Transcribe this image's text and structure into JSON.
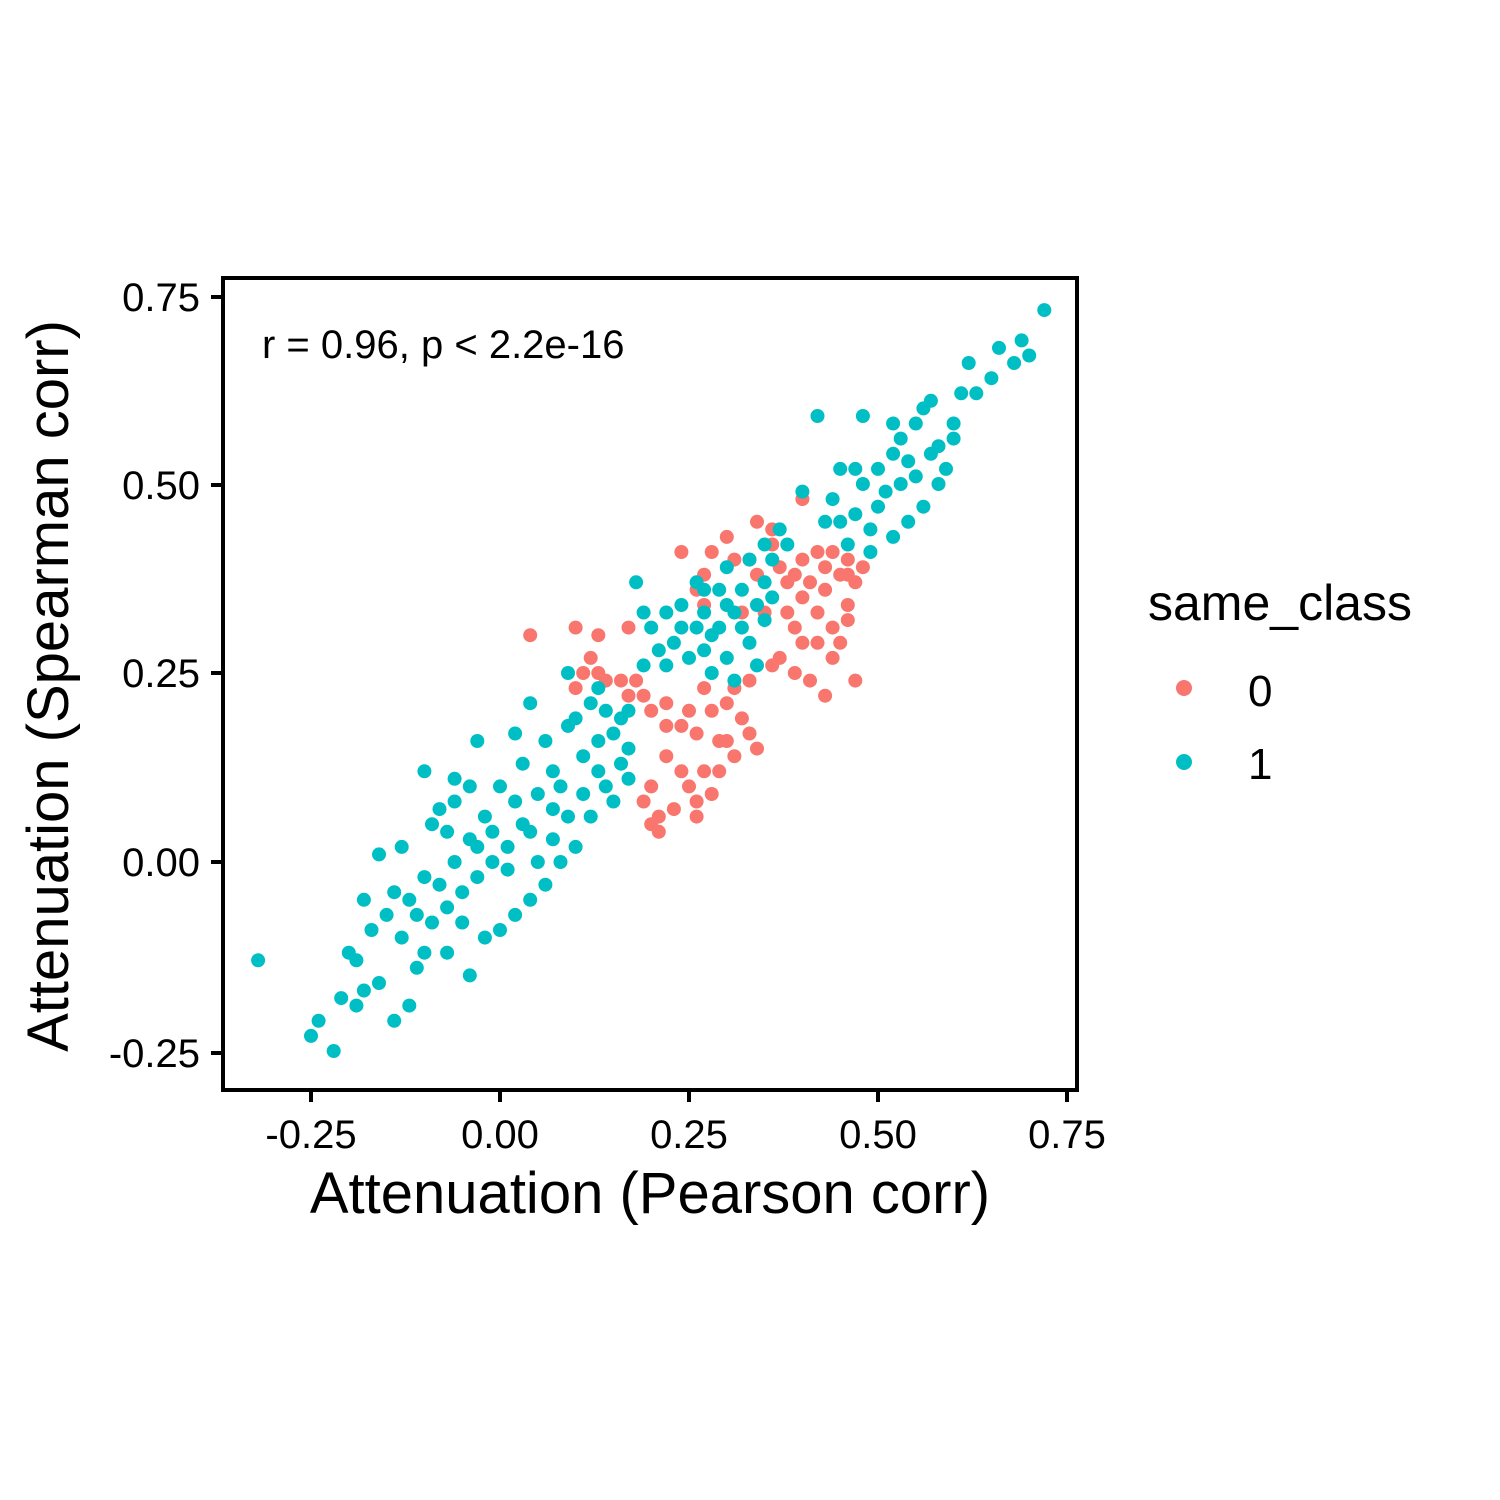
{
  "chart_data": {
    "type": "scatter",
    "xlabel": "Attenuation (Pearson corr)",
    "ylabel": "Attenuation (Spearman corr)",
    "xlim": [
      -0.3,
      0.75
    ],
    "ylim": [
      -0.26,
      0.75
    ],
    "x_ticks": [
      "-0.25",
      "0.00",
      "0.25",
      "0.50",
      "0.75"
    ],
    "y_ticks": [
      "-0.25",
      "0.00",
      "0.25",
      "0.50",
      "0.75"
    ],
    "annotation": "r = 0.96, p < 2.2e-16",
    "grid": false,
    "legend": {
      "title": "same_class",
      "placement": "right",
      "entries": [
        {
          "label": "0",
          "color": "#F8766D"
        },
        {
          "label": "1",
          "color": "#00BFC4"
        }
      ]
    },
    "series": [
      {
        "name": "0",
        "color": "#F8766D",
        "points": [
          [
            0.04,
            0.3
          ],
          [
            0.1,
            0.31
          ],
          [
            0.13,
            0.3
          ],
          [
            0.17,
            0.31
          ],
          [
            0.12,
            0.27
          ],
          [
            0.11,
            0.25
          ],
          [
            0.13,
            0.25
          ],
          [
            0.1,
            0.23
          ],
          [
            0.14,
            0.24
          ],
          [
            0.16,
            0.24
          ],
          [
            0.17,
            0.22
          ],
          [
            0.18,
            0.24
          ],
          [
            0.24,
            0.41
          ],
          [
            0.28,
            0.41
          ],
          [
            0.3,
            0.43
          ],
          [
            0.31,
            0.4
          ],
          [
            0.27,
            0.38
          ],
          [
            0.34,
            0.45
          ],
          [
            0.36,
            0.44
          ],
          [
            0.36,
            0.42
          ],
          [
            0.4,
            0.48
          ],
          [
            0.33,
            0.4
          ],
          [
            0.34,
            0.38
          ],
          [
            0.26,
            0.36
          ],
          [
            0.27,
            0.34
          ],
          [
            0.32,
            0.33
          ],
          [
            0.19,
            0.22
          ],
          [
            0.2,
            0.2
          ],
          [
            0.22,
            0.21
          ],
          [
            0.24,
            0.18
          ],
          [
            0.26,
            0.17
          ],
          [
            0.28,
            0.2
          ],
          [
            0.3,
            0.16
          ],
          [
            0.31,
            0.14
          ],
          [
            0.29,
            0.12
          ],
          [
            0.25,
            0.1
          ],
          [
            0.28,
            0.09
          ],
          [
            0.26,
            0.08
          ],
          [
            0.23,
            0.07
          ],
          [
            0.21,
            0.06
          ],
          [
            0.2,
            0.1
          ],
          [
            0.22,
            0.14
          ],
          [
            0.24,
            0.12
          ],
          [
            0.19,
            0.08
          ],
          [
            0.2,
            0.05
          ],
          [
            0.21,
            0.04
          ],
          [
            0.26,
            0.06
          ],
          [
            0.27,
            0.12
          ],
          [
            0.29,
            0.16
          ],
          [
            0.32,
            0.19
          ],
          [
            0.33,
            0.17
          ],
          [
            0.34,
            0.15
          ],
          [
            0.38,
            0.37
          ],
          [
            0.4,
            0.35
          ],
          [
            0.42,
            0.33
          ],
          [
            0.44,
            0.31
          ],
          [
            0.45,
            0.29
          ],
          [
            0.46,
            0.34
          ],
          [
            0.47,
            0.37
          ],
          [
            0.48,
            0.39
          ],
          [
            0.46,
            0.38
          ],
          [
            0.43,
            0.36
          ],
          [
            0.39,
            0.31
          ],
          [
            0.4,
            0.29
          ],
          [
            0.37,
            0.27
          ],
          [
            0.39,
            0.25
          ],
          [
            0.41,
            0.24
          ],
          [
            0.43,
            0.22
          ],
          [
            0.42,
            0.29
          ],
          [
            0.44,
            0.27
          ],
          [
            0.47,
            0.24
          ],
          [
            0.46,
            0.32
          ],
          [
            0.4,
            0.4
          ],
          [
            0.42,
            0.41
          ],
          [
            0.45,
            0.38
          ],
          [
            0.38,
            0.33
          ],
          [
            0.41,
            0.37
          ],
          [
            0.43,
            0.39
          ],
          [
            0.36,
            0.26
          ],
          [
            0.35,
            0.33
          ],
          [
            0.46,
            0.4
          ],
          [
            0.44,
            0.41
          ],
          [
            0.37,
            0.39
          ],
          [
            0.39,
            0.38
          ],
          [
            0.31,
            0.23
          ],
          [
            0.3,
            0.21
          ],
          [
            0.33,
            0.24
          ],
          [
            0.22,
            0.18
          ],
          [
            0.25,
            0.2
          ],
          [
            0.27,
            0.23
          ]
        ]
      },
      {
        "name": "1",
        "color": "#00BFC4",
        "points": [
          [
            -0.32,
            -0.13
          ],
          [
            -0.25,
            -0.23
          ],
          [
            -0.22,
            -0.25
          ],
          [
            -0.24,
            -0.21
          ],
          [
            -0.21,
            -0.18
          ],
          [
            -0.2,
            -0.12
          ],
          [
            -0.18,
            -0.17
          ],
          [
            -0.19,
            -0.19
          ],
          [
            -0.16,
            -0.16
          ],
          [
            -0.14,
            -0.21
          ],
          [
            -0.12,
            -0.19
          ],
          [
            -0.11,
            -0.14
          ],
          [
            -0.1,
            -0.12
          ],
          [
            -0.07,
            -0.12
          ],
          [
            -0.04,
            -0.15
          ],
          [
            -0.15,
            -0.07
          ],
          [
            -0.16,
            0.01
          ],
          [
            -0.12,
            -0.05
          ],
          [
            -0.09,
            0.05
          ],
          [
            -0.1,
            0.12
          ],
          [
            -0.06,
            0.11
          ],
          [
            -0.04,
            0.1
          ],
          [
            -0.03,
            0.16
          ],
          [
            -0.08,
            0.07
          ],
          [
            -0.13,
            0.02
          ],
          [
            -0.06,
            0.08
          ],
          [
            0.02,
            0.17
          ],
          [
            0.04,
            0.21
          ],
          [
            0.09,
            0.25
          ],
          [
            0.13,
            0.23
          ],
          [
            0.18,
            0.37
          ],
          [
            0.19,
            0.33
          ],
          [
            0.24,
            0.34
          ],
          [
            0.27,
            0.33
          ],
          [
            0.29,
            0.36
          ],
          [
            0.3,
            0.39
          ],
          [
            0.33,
            0.4
          ],
          [
            0.35,
            0.42
          ],
          [
            0.37,
            0.44
          ],
          [
            0.4,
            0.49
          ],
          [
            0.43,
            0.45
          ],
          [
            0.45,
            0.52
          ],
          [
            0.47,
            0.52
          ],
          [
            0.48,
            0.59
          ],
          [
            0.52,
            0.58
          ],
          [
            0.55,
            0.58
          ],
          [
            0.57,
            0.61
          ],
          [
            0.6,
            0.58
          ],
          [
            0.61,
            0.62
          ],
          [
            0.63,
            0.62
          ],
          [
            0.62,
            0.66
          ],
          [
            0.65,
            0.64
          ],
          [
            0.66,
            0.68
          ],
          [
            0.68,
            0.66
          ],
          [
            0.69,
            0.69
          ],
          [
            0.7,
            0.67
          ],
          [
            0.72,
            0.73
          ],
          [
            0.42,
            0.59
          ],
          [
            0.56,
            0.6
          ],
          [
            0.58,
            0.55
          ],
          [
            0.59,
            0.52
          ],
          [
            0.6,
            0.56
          ],
          [
            0.54,
            0.53
          ],
          [
            0.53,
            0.5
          ],
          [
            0.5,
            0.47
          ],
          [
            0.49,
            0.44
          ],
          [
            0.46,
            0.42
          ],
          [
            0.38,
            0.42
          ],
          [
            0.36,
            0.4
          ],
          [
            0.35,
            0.37
          ],
          [
            0.32,
            0.36
          ],
          [
            0.31,
            0.33
          ],
          [
            0.28,
            0.3
          ],
          [
            0.26,
            0.31
          ],
          [
            0.23,
            0.29
          ],
          [
            0.21,
            0.28
          ],
          [
            0.19,
            0.26
          ],
          [
            0.2,
            0.31
          ],
          [
            0.22,
            0.33
          ],
          [
            0.25,
            0.27
          ],
          [
            0.28,
            0.25
          ],
          [
            0.3,
            0.27
          ],
          [
            0.33,
            0.29
          ],
          [
            0.35,
            0.32
          ],
          [
            0.34,
            0.26
          ],
          [
            0.31,
            0.24
          ],
          [
            0.17,
            0.2
          ],
          [
            0.15,
            0.17
          ],
          [
            0.16,
            0.13
          ],
          [
            0.14,
            0.1
          ],
          [
            0.12,
            0.06
          ],
          [
            0.1,
            0.02
          ],
          [
            0.08,
            0.0
          ],
          [
            0.06,
            -0.03
          ],
          [
            0.04,
            -0.05
          ],
          [
            0.02,
            -0.07
          ],
          [
            0.0,
            -0.09
          ],
          [
            -0.02,
            -0.1
          ],
          [
            0.11,
            0.14
          ],
          [
            0.09,
            0.18
          ],
          [
            0.07,
            0.12
          ],
          [
            0.05,
            0.09
          ],
          [
            0.03,
            0.05
          ],
          [
            0.01,
            0.02
          ],
          [
            -0.01,
            0.0
          ],
          [
            -0.03,
            -0.02
          ],
          [
            -0.05,
            -0.04
          ],
          [
            -0.07,
            -0.06
          ],
          [
            -0.09,
            -0.08
          ],
          [
            0.13,
            0.16
          ],
          [
            0.14,
            0.2
          ],
          [
            0.16,
            0.19
          ],
          [
            0.17,
            0.15
          ],
          [
            0.12,
            0.21
          ],
          [
            0.1,
            0.19
          ],
          [
            0.06,
            0.16
          ],
          [
            0.03,
            0.13
          ],
          [
            0.0,
            0.1
          ],
          [
            -0.02,
            0.06
          ],
          [
            -0.04,
            0.03
          ],
          [
            -0.06,
            0.0
          ],
          [
            -0.08,
            -0.03
          ],
          [
            -0.11,
            -0.07
          ],
          [
            -0.13,
            -0.1
          ],
          [
            -0.05,
            -0.08
          ],
          [
            0.01,
            -0.01
          ],
          [
            0.04,
            0.04
          ],
          [
            0.07,
            0.07
          ],
          [
            0.02,
            0.08
          ],
          [
            -0.01,
            0.04
          ],
          [
            0.08,
            0.1
          ],
          [
            0.11,
            0.09
          ],
          [
            0.13,
            0.12
          ],
          [
            0.15,
            0.08
          ],
          [
            0.17,
            0.11
          ],
          [
            0.05,
            0.0
          ],
          [
            0.07,
            0.03
          ],
          [
            0.09,
            0.06
          ],
          [
            -0.03,
            0.02
          ],
          [
            -0.07,
            0.04
          ],
          [
            -0.1,
            -0.02
          ],
          [
            -0.14,
            -0.04
          ],
          [
            -0.17,
            -0.09
          ],
          [
            -0.19,
            -0.13
          ],
          [
            -0.18,
            -0.05
          ],
          [
            0.44,
            0.48
          ],
          [
            0.47,
            0.46
          ],
          [
            0.51,
            0.49
          ],
          [
            0.52,
            0.54
          ],
          [
            0.55,
            0.51
          ],
          [
            0.57,
            0.54
          ],
          [
            0.5,
            0.52
          ],
          [
            0.48,
            0.5
          ],
          [
            0.45,
            0.45
          ],
          [
            0.53,
            0.56
          ],
          [
            0.56,
            0.47
          ],
          [
            0.58,
            0.5
          ],
          [
            0.49,
            0.41
          ],
          [
            0.52,
            0.43
          ],
          [
            0.54,
            0.45
          ],
          [
            0.26,
            0.37
          ],
          [
            0.24,
            0.31
          ],
          [
            0.22,
            0.26
          ],
          [
            0.27,
            0.28
          ],
          [
            0.29,
            0.31
          ],
          [
            0.32,
            0.31
          ],
          [
            0.34,
            0.34
          ],
          [
            0.36,
            0.35
          ],
          [
            0.3,
            0.34
          ],
          [
            0.27,
            0.36
          ]
        ]
      }
    ]
  }
}
